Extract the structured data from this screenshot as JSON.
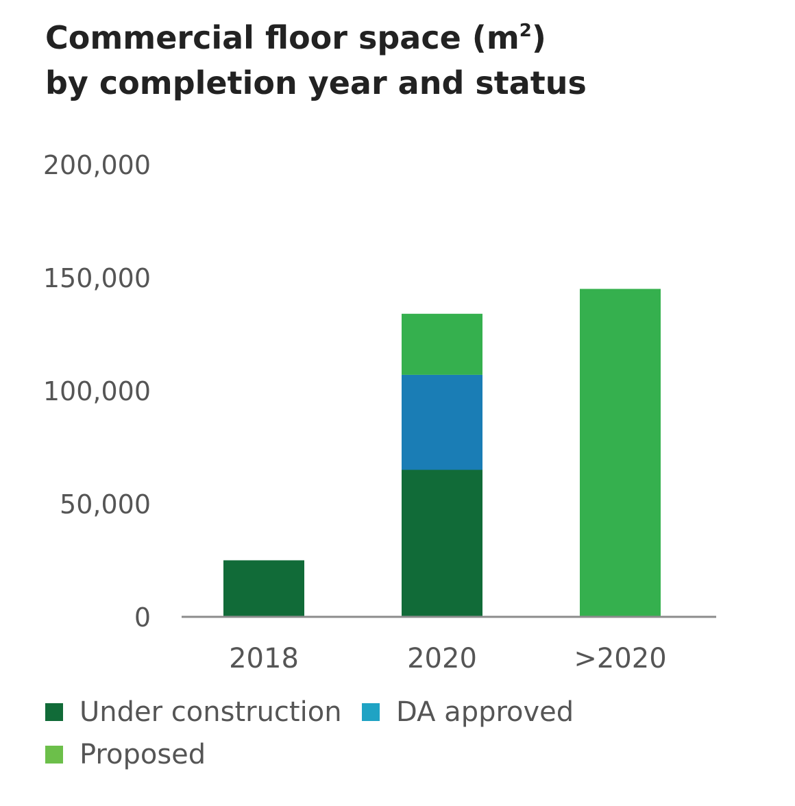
{
  "title": {
    "line1_text": "Commercial floor space (m",
    "line1_sup": "2",
    "line1_end": ")",
    "line2": "by completion year and status"
  },
  "legend": {
    "items": [
      {
        "label": "Under construction",
        "color": "#116b38"
      },
      {
        "label": "DA approved",
        "color": "#1fa3c4"
      },
      {
        "label": "Proposed",
        "color": "#6cbf4a"
      }
    ]
  },
  "chart_data": {
    "type": "bar",
    "stacked": true,
    "categories": [
      "2018",
      "2020",
      ">2020"
    ],
    "series": [
      {
        "name": "Under construction",
        "color": "#116b38",
        "values": [
          25000,
          65000,
          0
        ]
      },
      {
        "name": "DA approved",
        "color": "#1a7db5",
        "values": [
          0,
          42000,
          0
        ]
      },
      {
        "name": "Proposed",
        "color": "#35b04e",
        "values": [
          0,
          27000,
          145000
        ]
      }
    ],
    "ylim": [
      0,
      200000
    ],
    "yticks": [
      0,
      50000,
      100000,
      150000,
      200000
    ],
    "ytick_labels": [
      "0",
      "50,000",
      "100,000",
      "150,000",
      "200,000"
    ],
    "grid": false,
    "legend_position": "bottom"
  }
}
